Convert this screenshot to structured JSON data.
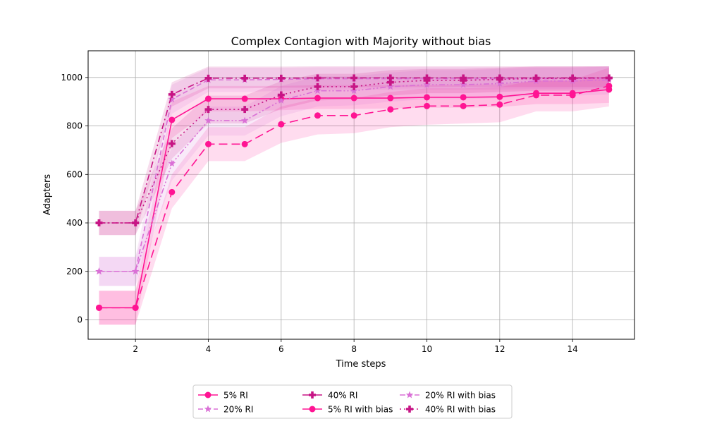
{
  "chart_data": {
    "type": "line",
    "title": "Complex Contagion with Majority without bias",
    "xlabel": "Time steps",
    "ylabel": "Adapters",
    "xlim": [
      0.7,
      15.7
    ],
    "ylim": [
      -80,
      1110
    ],
    "xticks": [
      2,
      4,
      6,
      8,
      10,
      12,
      14
    ],
    "yticks": [
      0,
      200,
      400,
      600,
      800,
      1000
    ],
    "grid": true,
    "legend_position": "bottom-center",
    "x": [
      1,
      2,
      3,
      4,
      5,
      6,
      7,
      8,
      9,
      10,
      11,
      12,
      13,
      14,
      15
    ],
    "series": [
      {
        "name": "5% RI",
        "color": "#ff1493",
        "linestyle": "solid",
        "marker": "circle",
        "values": [
          50,
          50,
          825,
          912,
          912,
          912,
          915,
          915,
          915,
          918,
          918,
          920,
          935,
          935,
          950
        ],
        "lower": [
          -20,
          -20,
          750,
          860,
          860,
          865,
          870,
          870,
          872,
          875,
          875,
          878,
          890,
          890,
          895
        ],
        "upper": [
          120,
          120,
          900,
          965,
          965,
          965,
          968,
          968,
          968,
          970,
          970,
          972,
          985,
          985,
          1005
        ]
      },
      {
        "name": "20% RI",
        "color": "#da70d6",
        "linestyle": "dashed",
        "marker": "star",
        "values": [
          200,
          200,
          910,
          990,
          990,
          992,
          995,
          995,
          995,
          995,
          995,
          995,
          995,
          995,
          997
        ],
        "lower": [
          140,
          140,
          850,
          940,
          940,
          945,
          948,
          950,
          950,
          950,
          950,
          950,
          952,
          952,
          955
        ],
        "upper": [
          260,
          260,
          970,
          1040,
          1040,
          1040,
          1042,
          1042,
          1042,
          1042,
          1042,
          1042,
          1044,
          1044,
          1045
        ]
      },
      {
        "name": "40% RI",
        "color": "#c71585",
        "linestyle": "dashdot",
        "marker": "plus",
        "values": [
          400,
          400,
          930,
          997,
          997,
          997,
          998,
          998,
          998,
          998,
          998,
          998,
          998,
          998,
          998
        ],
        "lower": [
          350,
          350,
          880,
          955,
          955,
          958,
          958,
          960,
          960,
          960,
          960,
          960,
          960,
          960,
          960
        ],
        "upper": [
          450,
          450,
          980,
          1045,
          1045,
          1045,
          1046,
          1046,
          1046,
          1046,
          1046,
          1046,
          1046,
          1046,
          1046
        ]
      },
      {
        "name": "5% RI with bias",
        "color": "#ff1493",
        "linestyle": "longdash",
        "marker": "circle",
        "values": [
          50,
          50,
          527,
          725,
          725,
          807,
          843,
          843,
          868,
          882,
          882,
          888,
          927,
          927,
          965
        ],
        "lower": [
          -20,
          -20,
          460,
          655,
          655,
          730,
          765,
          770,
          795,
          805,
          810,
          815,
          860,
          860,
          880
        ],
        "upper": [
          120,
          120,
          600,
          795,
          795,
          880,
          915,
          915,
          940,
          955,
          955,
          960,
          990,
          990,
          1040
        ]
      },
      {
        "name": "20% RI with bias",
        "color": "#da70d6",
        "linestyle": "dashdotdot",
        "marker": "star",
        "values": [
          200,
          200,
          645,
          822,
          822,
          905,
          945,
          945,
          962,
          970,
          970,
          975,
          985,
          985,
          990
        ],
        "lower": [
          140,
          140,
          575,
          760,
          760,
          840,
          880,
          885,
          900,
          910,
          910,
          915,
          925,
          925,
          930
        ],
        "upper": [
          260,
          260,
          715,
          880,
          880,
          965,
          1005,
          1005,
          1020,
          1030,
          1030,
          1035,
          1040,
          1040,
          1045
        ]
      },
      {
        "name": "40% RI with bias",
        "color": "#c71585",
        "linestyle": "dotted",
        "marker": "plus",
        "values": [
          400,
          400,
          727,
          868,
          868,
          928,
          962,
          962,
          980,
          988,
          988,
          992,
          996,
          996,
          998
        ],
        "lower": [
          350,
          350,
          665,
          810,
          810,
          870,
          905,
          910,
          925,
          935,
          935,
          940,
          945,
          945,
          950
        ],
        "upper": [
          450,
          450,
          790,
          925,
          925,
          985,
          1015,
          1015,
          1030,
          1035,
          1035,
          1040,
          1045,
          1045,
          1046
        ]
      }
    ]
  }
}
